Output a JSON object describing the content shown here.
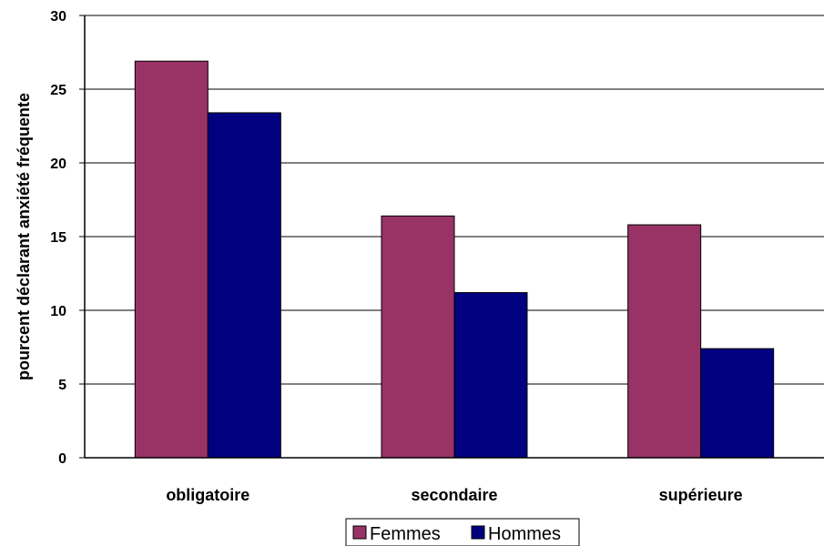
{
  "chart_data": {
    "type": "bar",
    "categories": [
      "obligatoire",
      "secondaire",
      "supérieure"
    ],
    "series": [
      {
        "name": "Femmes",
        "values": [
          26.9,
          16.4,
          15.8
        ],
        "color": "#993366"
      },
      {
        "name": "Hommes",
        "values": [
          23.4,
          11.2,
          7.4
        ],
        "color": "#000080"
      }
    ],
    "ylabel": "pourcent déclarant anxiété fréquente",
    "ylim": [
      0,
      30
    ],
    "yticks": [
      0,
      5,
      10,
      15,
      20,
      25,
      30
    ],
    "grid": true,
    "legend_position": "bottom"
  }
}
